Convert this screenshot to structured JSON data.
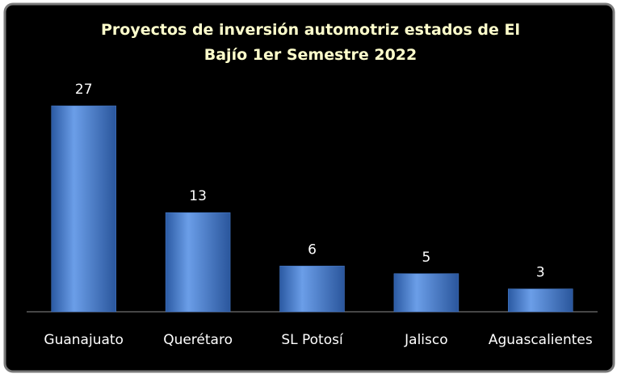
{
  "chart_data": {
    "type": "bar",
    "title": "Proyectos de inversión automotriz estados de El Bajío 1er Semestre 2022",
    "categories": [
      "Guanajuato",
      "Querétaro",
      "SL Potosí",
      "Jalisco",
      "Aguascalientes"
    ],
    "values": [
      27,
      13,
      6,
      5,
      3
    ],
    "color": "#4a7fd0"
  }
}
